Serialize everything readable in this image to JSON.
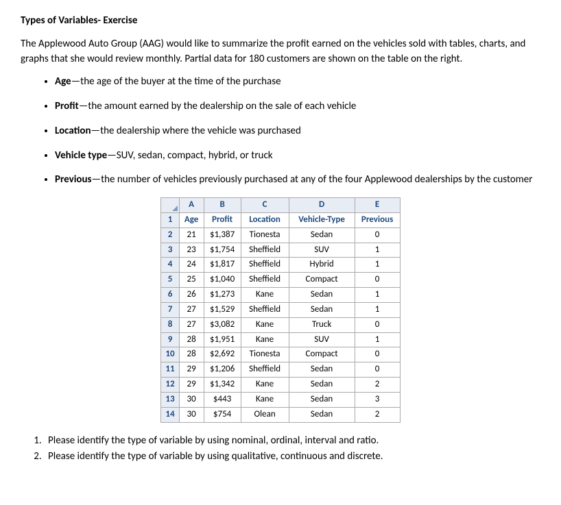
{
  "title": "Types of Variables- Exercise",
  "intro": "The Applewood Auto Group (AAG) would like to summarize the profit earned on the vehicles sold with tables, charts, and graphs that she would review monthly. Partial data for 180 customers are shown on the table on the right.",
  "variables": [
    {
      "term": "Age",
      "desc": "—the age of the buyer at the time of the purchase"
    },
    {
      "term": "Profit",
      "desc": "—the amount earned by the dealership on the sale of each vehicle"
    },
    {
      "term": "Location",
      "desc": "—the dealership where the vehicle was purchased"
    },
    {
      "term": "Vehicle type",
      "desc": "—SUV, sedan, compact, hybrid, or truck"
    },
    {
      "term": "Previous",
      "desc": "—the number of vehicles previously purchased at any of the four Applewood dealerships by the customer"
    }
  ],
  "excel": {
    "col_letters": [
      "A",
      "B",
      "C",
      "D",
      "E"
    ],
    "col_widths": [
      "cA",
      "cB",
      "cC",
      "cD",
      "cE"
    ],
    "field_row": {
      "num": "1",
      "cells": [
        "Age",
        "Profit",
        "Location",
        "Vehicle-Type",
        "Previous"
      ]
    },
    "rows": [
      {
        "num": "2",
        "cells": [
          "21",
          "$1,387",
          "Tionesta",
          "Sedan",
          "0"
        ]
      },
      {
        "num": "3",
        "cells": [
          "23",
          "$1,754",
          "Sheffield",
          "SUV",
          "1"
        ]
      },
      {
        "num": "4",
        "cells": [
          "24",
          "$1,817",
          "Sheffield",
          "Hybrid",
          "1"
        ]
      },
      {
        "num": "5",
        "cells": [
          "25",
          "$1,040",
          "Sheffield",
          "Compact",
          "0"
        ]
      },
      {
        "num": "6",
        "cells": [
          "26",
          "$1,273",
          "Kane",
          "Sedan",
          "1"
        ]
      },
      {
        "num": "7",
        "cells": [
          "27",
          "$1,529",
          "Sheffield",
          "Sedan",
          "1"
        ]
      },
      {
        "num": "8",
        "cells": [
          "27",
          "$3,082",
          "Kane",
          "Truck",
          "0"
        ]
      },
      {
        "num": "9",
        "cells": [
          "28",
          "$1,951",
          "Kane",
          "SUV",
          "1"
        ]
      },
      {
        "num": "10",
        "cells": [
          "28",
          "$2,692",
          "Tionesta",
          "Compact",
          "0"
        ]
      },
      {
        "num": "11",
        "cells": [
          "29",
          "$1,206",
          "Sheffield",
          "Sedan",
          "0"
        ]
      },
      {
        "num": "12",
        "cells": [
          "29",
          "$1,342",
          "Kane",
          "Sedan",
          "2"
        ]
      },
      {
        "num": "13",
        "cells": [
          "30",
          "$443",
          "Kane",
          "Sedan",
          "3"
        ]
      },
      {
        "num": "14",
        "cells": [
          "30",
          "$754",
          "Olean",
          "Sedan",
          "2"
        ]
      }
    ],
    "header_bg": "#e8edf5",
    "header_fg": "#1f497d",
    "border_color": "#a9a9a9",
    "font_size": 13
  },
  "questions": [
    "Please identify the type of variable by using nominal, ordinal, interval and ratio.",
    "Please identify the type of variable by using qualitative, continuous and discrete."
  ]
}
